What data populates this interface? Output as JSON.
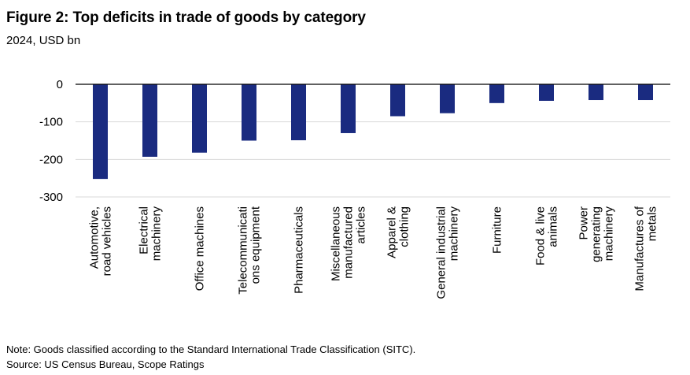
{
  "title": "Figure 2: Top deficits in trade of goods by category",
  "subtitle": "2024, USD bn",
  "note": "Note: Goods classified according to the Standard International Trade Classification (SITC).",
  "source": "Source: US Census Bureau, Scope Ratings",
  "colors": {
    "bar": "#1a2b80",
    "grid": "#d9d9d9",
    "zero_line": "#000000"
  },
  "chart_data": {
    "type": "bar",
    "categories": [
      [
        "Automotive,",
        "road vehicles"
      ],
      [
        "Electrical",
        "machinery"
      ],
      [
        "Office machines"
      ],
      [
        "Telecommunicati",
        "ons equipment"
      ],
      [
        "Pharmaceuticals"
      ],
      [
        "Miscellaneous",
        "manufactured",
        "articles"
      ],
      [
        "Apparel &",
        "clothing"
      ],
      [
        "General industrial",
        "machinery"
      ],
      [
        "Furniture"
      ],
      [
        "Food & live",
        "animals"
      ],
      [
        "Power",
        "generating",
        "machinery"
      ],
      [
        "Manufactures of",
        "metals"
      ]
    ],
    "values": [
      -252,
      -193,
      -182,
      -150,
      -149,
      -130,
      -85,
      -77,
      -50,
      -44,
      -42,
      -42
    ],
    "ylim": [
      -300,
      0
    ],
    "yticks": [
      0,
      -100,
      -200,
      -300
    ],
    "ytick_labels": [
      "0",
      "-100",
      "-200",
      "-300"
    ],
    "grid": true,
    "legend": "none"
  }
}
